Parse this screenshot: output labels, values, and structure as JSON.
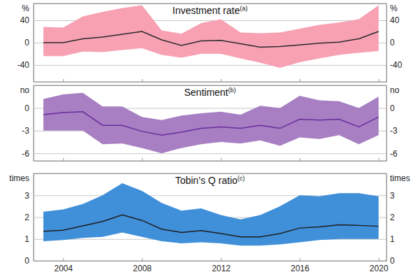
{
  "chart_data": [
    {
      "type": "line",
      "title": "Investment rate",
      "annotations": [
        "(a)"
      ],
      "ylabel": "%",
      "x": [
        2003,
        2004,
        2005,
        2006,
        2007,
        2008,
        2009,
        2010,
        2011,
        2012,
        2013,
        2014,
        2015,
        2016,
        2017,
        2018,
        2019,
        2020
      ],
      "xlim": [
        2002.5,
        2020.4
      ],
      "xticks": [
        2004,
        2008,
        2012,
        2016,
        2020
      ],
      "ylim": [
        -70,
        70
      ],
      "yticks": [
        -40,
        0,
        40
      ],
      "grid": true,
      "tick_labels": "y",
      "series": [
        {
          "type": "band",
          "color": "#f7a1b3",
          "low": [
            -24,
            -24,
            -16,
            -17,
            -13,
            -10,
            -22,
            -27,
            -20,
            -20,
            -28,
            -36,
            -45,
            -35,
            -28,
            -22,
            -18,
            -15
          ],
          "high": [
            28,
            27,
            47,
            55,
            62,
            67,
            22,
            16,
            35,
            42,
            18,
            17,
            18,
            25,
            32,
            36,
            42,
            67
          ]
        },
        {
          "type": "line",
          "color": "#2b2b2b",
          "values": [
            0,
            0,
            7,
            10,
            15,
            20,
            5,
            -5,
            3,
            4,
            -2,
            -8,
            -7,
            -4,
            -1,
            1,
            7,
            20
          ]
        }
      ]
    },
    {
      "type": "line",
      "title": "Sentiment",
      "annotations": [
        "(b)"
      ],
      "ylabel": "no",
      "x": [
        2003,
        2004,
        2005,
        2006,
        2007,
        2008,
        2009,
        2010,
        2011,
        2012,
        2013,
        2014,
        2015,
        2016,
        2017,
        2018,
        2019,
        2020
      ],
      "xlim": [
        2002.5,
        2020.4
      ],
      "xticks": [
        2004,
        2008,
        2012,
        2016,
        2020
      ],
      "ylim": [
        -7,
        3
      ],
      "yticks": [
        -6,
        -3,
        0
      ],
      "grid": true,
      "tick_labels": "y",
      "series": [
        {
          "type": "band",
          "color": "#a77fc2",
          "low": [
            -3,
            -3,
            -3,
            -4.8,
            -4.7,
            -5.3,
            -6,
            -5.3,
            -4.8,
            -4.5,
            -4.7,
            -4.3,
            -5,
            -3.9,
            -4.1,
            -3.6,
            -4.8,
            -3.6
          ],
          "high": [
            1.2,
            1.8,
            2,
            0.2,
            0.2,
            -1.2,
            -1.6,
            -1,
            -0.7,
            -0.5,
            -0.9,
            0.3,
            0,
            1.6,
            1,
            0.9,
            0,
            1.5
          ]
        },
        {
          "type": "line",
          "color": "#6a2d9c",
          "values": [
            -0.9,
            -0.6,
            -0.5,
            -2.3,
            -2.3,
            -3.1,
            -3.6,
            -3.2,
            -2.7,
            -2.5,
            -2.7,
            -2.3,
            -2.7,
            -1.5,
            -1.6,
            -1.5,
            -2.5,
            -1.2
          ]
        }
      ]
    },
    {
      "type": "line",
      "title": "Tobin’s Q ratio",
      "annotations": [
        "(c)"
      ],
      "ylabel": "times",
      "x": [
        2003,
        2004,
        2005,
        2006,
        2007,
        2008,
        2009,
        2010,
        2011,
        2012,
        2013,
        2014,
        2015,
        2016,
        2017,
        2018,
        2019,
        2020
      ],
      "xlim": [
        2002.5,
        2020.4
      ],
      "xticks": [
        2004,
        2008,
        2012,
        2016,
        2020
      ],
      "ylim": [
        0,
        4
      ],
      "yticks": [
        0,
        1,
        2,
        3
      ],
      "grid": true,
      "series": [
        {
          "type": "band",
          "color": "#3f8fd9",
          "low": [
            0.9,
            0.95,
            1.05,
            1.1,
            1.3,
            1.1,
            0.9,
            0.8,
            0.85,
            0.8,
            0.7,
            0.7,
            0.75,
            0.85,
            0.95,
            1,
            1,
            1
          ],
          "high": [
            2.25,
            2.35,
            2.6,
            3,
            3.55,
            3.2,
            2.65,
            2.3,
            2.4,
            2.1,
            1.9,
            2.1,
            2.5,
            3,
            2.95,
            3.1,
            3.1,
            2.95
          ]
        },
        {
          "type": "line",
          "color": "#1f1f1f",
          "values": [
            1.35,
            1.4,
            1.6,
            1.8,
            2.1,
            1.85,
            1.45,
            1.3,
            1.38,
            1.25,
            1.1,
            1.1,
            1.25,
            1.5,
            1.55,
            1.65,
            1.62,
            1.58
          ]
        }
      ]
    }
  ]
}
